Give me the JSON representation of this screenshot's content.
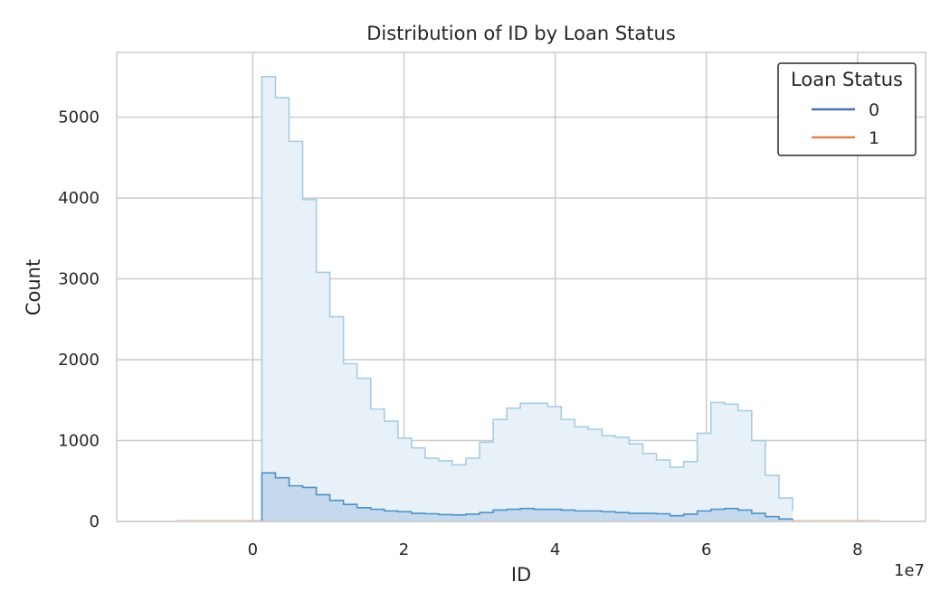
{
  "chart_data": {
    "type": "histogram",
    "title": "Distribution of ID by Loan Status",
    "xlabel": "ID",
    "ylabel": "Count",
    "x_offset_label": "1e7",
    "xlim": [
      -1.8,
      8.9
    ],
    "ylim": [
      0,
      5800
    ],
    "x_ticks": [
      0,
      2,
      4,
      6,
      8
    ],
    "x_tick_labels": [
      "0",
      "2",
      "4",
      "6",
      "8"
    ],
    "y_ticks": [
      0,
      1000,
      2000,
      3000,
      4000,
      5000
    ],
    "y_tick_labels": [
      "0",
      "1000",
      "2000",
      "3000",
      "4000",
      "5000"
    ],
    "grid": true,
    "legend": {
      "title": "Loan Status",
      "position": "top-right"
    },
    "bin_edges": [
      0.12,
      0.3,
      0.48,
      0.66,
      0.84,
      1.02,
      1.2,
      1.38,
      1.56,
      1.74,
      1.92,
      2.1,
      2.28,
      2.46,
      2.64,
      2.82,
      3.0,
      3.18,
      3.36,
      3.54,
      3.72,
      3.9,
      4.08,
      4.26,
      4.44,
      4.62,
      4.8,
      4.98,
      5.16,
      5.34,
      5.52,
      5.7,
      5.88,
      6.06,
      6.24,
      6.42,
      6.6,
      6.78,
      6.96,
      7.14
    ],
    "series": [
      {
        "name": "0",
        "legend_color": "#4c72b0",
        "line_color": "#a6cce4",
        "fill_color": "#e8f1f8",
        "values": [
          5500,
          5240,
          4700,
          3980,
          3080,
          2530,
          1950,
          1770,
          1390,
          1240,
          1030,
          910,
          780,
          750,
          700,
          780,
          980,
          1260,
          1400,
          1460,
          1460,
          1420,
          1260,
          1170,
          1140,
          1060,
          1040,
          960,
          840,
          760,
          670,
          740,
          1090,
          1470,
          1450,
          1370,
          1000,
          570,
          290,
          130
        ]
      },
      {
        "name": "1",
        "legend_color": "#dd8452",
        "line_color": "#4e91c6",
        "fill_color": "#c4d9ee",
        "values": [
          600,
          540,
          440,
          420,
          330,
          260,
          210,
          170,
          150,
          130,
          120,
          100,
          95,
          85,
          80,
          90,
          110,
          140,
          150,
          160,
          150,
          150,
          140,
          130,
          130,
          120,
          110,
          100,
          100,
          95,
          70,
          90,
          130,
          150,
          160,
          140,
          100,
          60,
          30,
          15
        ]
      }
    ]
  }
}
